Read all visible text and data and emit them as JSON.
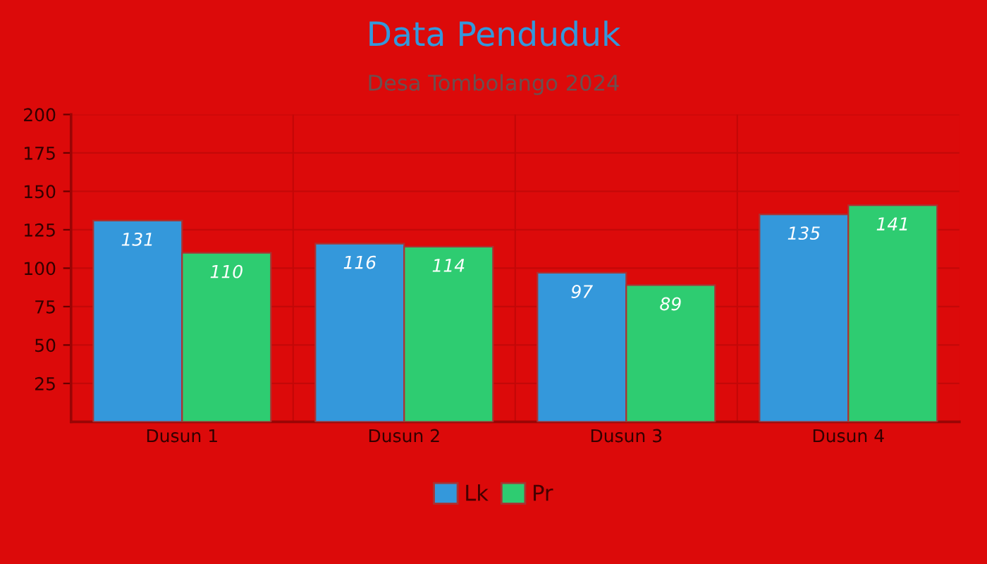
{
  "chart_data": {
    "type": "bar",
    "title": "Data Penduduk",
    "subtitle": "Desa Tombolango 2024",
    "categories": [
      "Dusun 1",
      "Dusun 2",
      "Dusun 3",
      "Dusun 4"
    ],
    "series": [
      {
        "name": "Lk",
        "color": "#3498db",
        "values": [
          131,
          116,
          97,
          135
        ]
      },
      {
        "name": "Pr",
        "color": "#2ecc71",
        "values": [
          110,
          114,
          89,
          141
        ]
      }
    ],
    "ylim": [
      0,
      200
    ],
    "yticks": [
      25,
      50,
      75,
      100,
      125,
      150,
      175,
      200
    ],
    "grid": true,
    "legend": "bottom",
    "data_labels": true
  }
}
